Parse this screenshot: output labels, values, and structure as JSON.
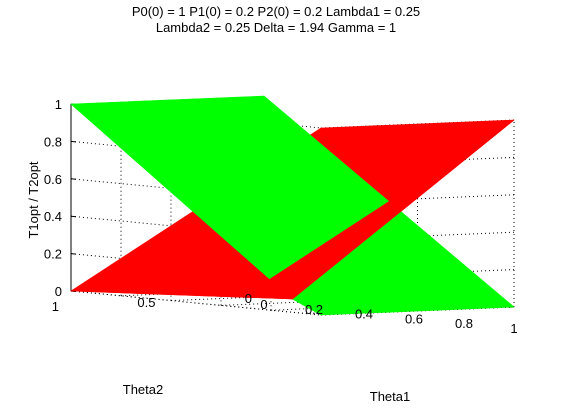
{
  "chart_data": {
    "type": "surface3d",
    "title": [
      "P0(0) = 1 P1(0) = 0.2 P2(0) = 0.2 Lambda1 = 0.25",
      "Lambda2 = 0.25 Delta = 1.94 Gamma = 1"
    ],
    "xlabel": "Theta1",
    "ylabel": "Theta2",
    "zlabel": "T1opt / T2opt",
    "xlim": [
      0,
      1
    ],
    "ylim": [
      0,
      1
    ],
    "zlim": [
      0,
      1
    ],
    "x_ticks": [
      "0",
      "0.2",
      "0.4",
      "0.6",
      "0.8",
      "1"
    ],
    "y_ticks": [
      "0",
      "0.5",
      "1"
    ],
    "z_ticks": [
      "0",
      "0.2",
      "0.4",
      "0.6",
      "0.8",
      "1"
    ],
    "grid": true,
    "series": [
      {
        "color": "#ff0000",
        "vertices": [
          {
            "theta1": 0,
            "theta2": 0,
            "z": 0
          },
          {
            "theta1": 0.5,
            "theta2": 0.5,
            "z": 0
          },
          {
            "theta1": 0,
            "theta2": 1,
            "z": 0
          },
          {
            "theta1": 1,
            "theta2": 0,
            "z": 1
          },
          {
            "theta1": 1,
            "theta2": 1,
            "z": 1
          }
        ]
      },
      {
        "color": "#00ff00",
        "vertices": [
          {
            "theta1": 0,
            "theta2": 0,
            "z": 1
          },
          {
            "theta1": 0,
            "theta2": 1,
            "z": 1
          },
          {
            "theta1": 0.5,
            "theta2": 0.5,
            "z": 0
          },
          {
            "theta1": 1,
            "theta2": 0,
            "z": 0
          },
          {
            "theta1": 1,
            "theta2": 1,
            "z": 0
          }
        ]
      }
    ]
  }
}
